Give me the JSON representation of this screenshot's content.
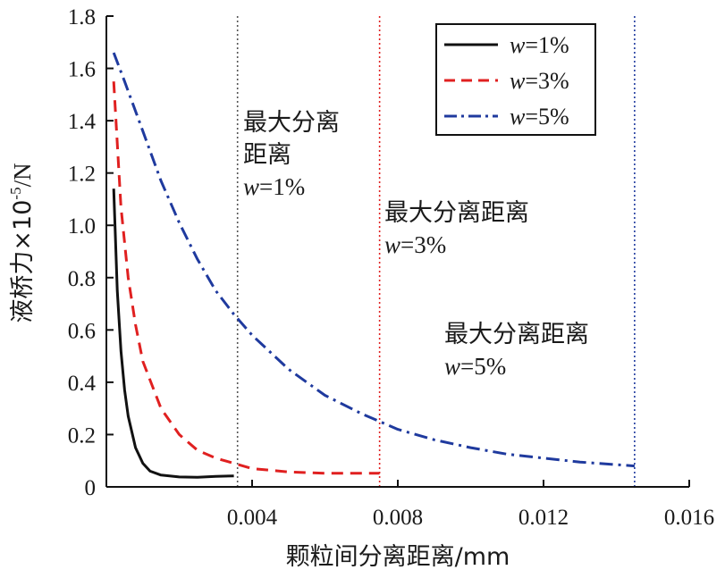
{
  "chart_data": {
    "type": "line",
    "xlabel": "颗粒间分离距离/mm",
    "ylabel": "液桥力×10⁻⁵/N",
    "ylabel_parts": {
      "main": "液桥力×10",
      "sup": "-5",
      "unit": "/N"
    },
    "xlim": [
      0,
      0.016
    ],
    "ylim": [
      0,
      1.8
    ],
    "x_ticks": [
      0.004,
      0.008,
      0.012,
      0.016
    ],
    "x_tick_labels": [
      "0.004",
      "0.008",
      "0.012",
      "0.016"
    ],
    "y_ticks": [
      0,
      0.2,
      0.4,
      0.6,
      0.8,
      1.0,
      1.2,
      1.4,
      1.6,
      1.8
    ],
    "y_tick_labels": [
      "0",
      "0.2",
      "0.4",
      "0.6",
      "0.8",
      "1.0",
      "1.2",
      "1.4",
      "1.6",
      "1.8"
    ],
    "grid": false,
    "legend_position": "top-right",
    "series": [
      {
        "name": "w=1%",
        "var": "w",
        "value": "=1%",
        "color": "#111111",
        "dash": "solid",
        "x": [
          0.0002,
          0.0003,
          0.0004,
          0.0005,
          0.0006,
          0.0008,
          0.001,
          0.0012,
          0.0015,
          0.002,
          0.0025,
          0.003,
          0.0035
        ],
        "y": [
          1.14,
          0.75,
          0.52,
          0.37,
          0.27,
          0.15,
          0.09,
          0.06,
          0.045,
          0.038,
          0.037,
          0.04,
          0.042
        ]
      },
      {
        "name": "w=3%",
        "var": "w",
        "value": "=3%",
        "color": "#e02020",
        "dash": "dashed",
        "x": [
          0.0002,
          0.0004,
          0.0006,
          0.0008,
          0.001,
          0.0015,
          0.002,
          0.0025,
          0.003,
          0.0035,
          0.004,
          0.005,
          0.006,
          0.007,
          0.0075
        ],
        "y": [
          1.55,
          1.07,
          0.8,
          0.62,
          0.48,
          0.3,
          0.2,
          0.14,
          0.11,
          0.09,
          0.07,
          0.057,
          0.052,
          0.052,
          0.052
        ]
      },
      {
        "name": "w=5%",
        "var": "w",
        "value": "=5%",
        "color": "#1f3a9e",
        "dash": "dashdot",
        "x": [
          0.0002,
          0.0005,
          0.001,
          0.0015,
          0.002,
          0.0025,
          0.003,
          0.0035,
          0.004,
          0.005,
          0.006,
          0.007,
          0.008,
          0.009,
          0.01,
          0.011,
          0.012,
          0.013,
          0.014,
          0.0145
        ],
        "y": [
          1.66,
          1.55,
          1.36,
          1.17,
          1.01,
          0.87,
          0.75,
          0.66,
          0.58,
          0.45,
          0.35,
          0.28,
          0.22,
          0.18,
          0.15,
          0.125,
          0.11,
          0.095,
          0.085,
          0.08
        ]
      }
    ],
    "vlines": [
      {
        "x": 0.0036,
        "color": "#555555"
      },
      {
        "x": 0.0075,
        "color": "#e02020"
      },
      {
        "x": 0.0145,
        "color": "#1f3a9e"
      }
    ],
    "annotations": [
      {
        "lines": [
          "最大分离",
          "距离"
        ],
        "var": "w",
        "value": "=1%"
      },
      {
        "lines": [
          "最大分离距离"
        ],
        "var": "w",
        "value": "=3%"
      },
      {
        "lines": [
          "最大分离距离"
        ],
        "var": "w",
        "value": "=5%"
      }
    ]
  }
}
